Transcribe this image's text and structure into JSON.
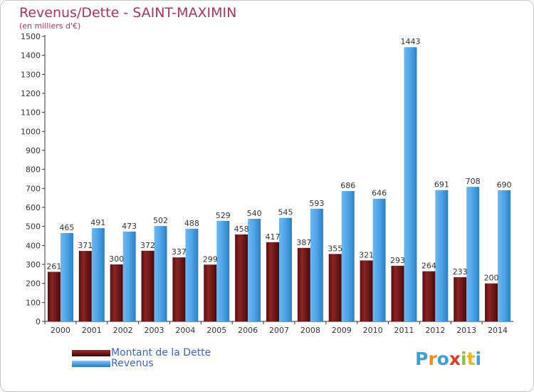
{
  "header": {
    "title": "Revenus/Dette - SAINT-MAXIMIN",
    "subtitle": "(en milliers d'€)"
  },
  "colors": {
    "debt": "#7a1a1a",
    "revenue": "#4da3e6",
    "title": "#b03060",
    "legend_text": "#3a63c8"
  },
  "legend": {
    "items": [
      {
        "label": "Montant de la Dette",
        "color": "#7a1a1a"
      },
      {
        "label": "Revenus",
        "color": "#4da3e6"
      }
    ]
  },
  "logo": {
    "text": "Proxiti",
    "letters": [
      {
        "char": "P",
        "color": "#3aa0d8"
      },
      {
        "char": "r",
        "color": "#f08a1c"
      },
      {
        "char": "o",
        "color": "#3aa0d8"
      },
      {
        "char": "x",
        "color": "#e23a2a"
      },
      {
        "char": "i",
        "color": "#8cc63f"
      },
      {
        "char": "t",
        "color": "#f0b41c"
      },
      {
        "char": "i",
        "color": "#3aa0d8"
      }
    ]
  },
  "chart_data": {
    "type": "bar",
    "title": "Revenus/Dette - SAINT-MAXIMIN",
    "subtitle": "(en milliers d'€)",
    "xlabel": "",
    "ylabel": "",
    "ylim": [
      0,
      1500
    ],
    "yticks": [
      0,
      100,
      200,
      300,
      400,
      500,
      600,
      700,
      800,
      900,
      1000,
      1100,
      1200,
      1300,
      1400,
      1500
    ],
    "grid": false,
    "legend_position": "bottom-left",
    "categories": [
      "2000",
      "2001",
      "2002",
      "2003",
      "2004",
      "2005",
      "2006",
      "2007",
      "2008",
      "2009",
      "2010",
      "2011",
      "2012",
      "2013",
      "2014"
    ],
    "series": [
      {
        "name": "Montant de la Dette",
        "color": "#7a1a1a",
        "values": [
          261,
          371,
          300,
          372,
          337,
          299,
          458,
          417,
          387,
          355,
          321,
          293,
          264,
          233,
          200
        ],
        "labels": [
          "261",
          "371",
          "300",
          "372",
          "337",
          "299",
          "458",
          "417",
          "387",
          "355",
          "321",
          "293",
          "264",
          "233",
          "200"
        ]
      },
      {
        "name": "Revenus",
        "color": "#4da3e6",
        "values": [
          465,
          491,
          473,
          502,
          488,
          529,
          540,
          545,
          593,
          686,
          646,
          1443,
          691,
          708,
          690
        ],
        "labels": [
          "465",
          "491",
          "473",
          "502",
          "488",
          "529",
          "540",
          "545",
          "593",
          "686",
          "646",
          "1443",
          "691",
          "708",
          "690"
        ]
      }
    ]
  }
}
